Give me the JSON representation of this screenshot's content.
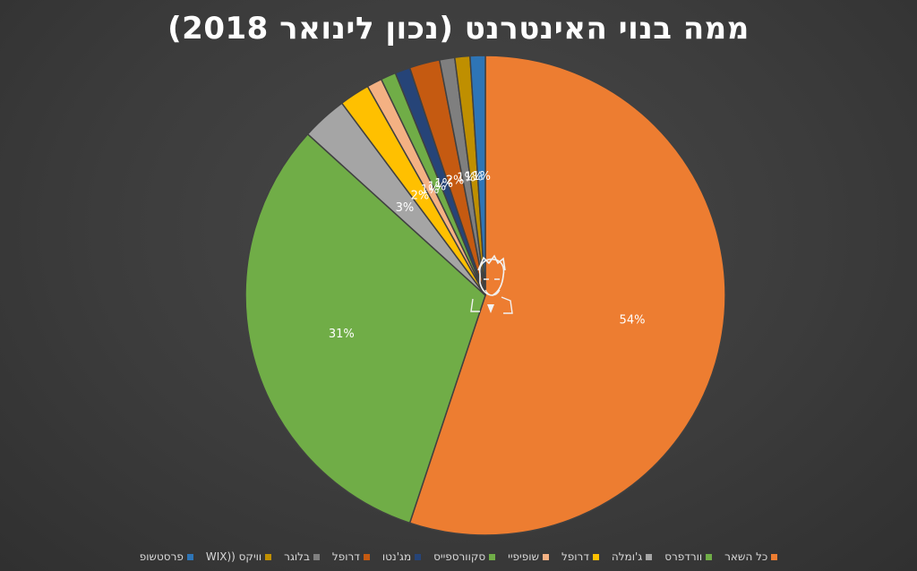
{
  "chart_data": {
    "type": "pie",
    "title": "ממה בנוי האינטרנט (נכון לינואר 2018)",
    "slices": [
      {
        "name": "כל השאר",
        "value": 54,
        "label": "54%",
        "color": "#ED7D31"
      },
      {
        "name": "וורדפרס",
        "value": 31,
        "label": "31%",
        "color": "#70AD47"
      },
      {
        "name": "ג'ומלה",
        "value": 3,
        "label": "3%",
        "color": "#A5A5A5"
      },
      {
        "name": "דרופל",
        "value": 2,
        "label": "2%",
        "color": "#FFC000"
      },
      {
        "name": "שופיפיי",
        "value": 1,
        "label": "1%",
        "color": "#F4B183"
      },
      {
        "name": "סקוורספייס",
        "value": 1,
        "label": "1%",
        "color": "#70AD47"
      },
      {
        "name": "מג'נטו",
        "value": 1,
        "label": "1%",
        "color": "#264478"
      },
      {
        "name": "דרופל",
        "value": 2,
        "label": "2%",
        "color": "#C55A11"
      },
      {
        "name": "בלוגר",
        "value": 1,
        "label": "1%",
        "color": "#7F7F7F"
      },
      {
        "name": "וויקס (WIX)",
        "value": 1,
        "label": "1%",
        "color": "#BF8F00"
      },
      {
        "name": "פרסטשופ",
        "value": 1,
        "label": "1%",
        "color": "#2E75B6"
      }
    ],
    "legend_position": "bottom"
  },
  "legend": {
    "items": [
      {
        "label": "כל השאר",
        "color": "#ED7D31"
      },
      {
        "label": "וורדפרס",
        "color": "#70AD47"
      },
      {
        "label": "ג'ומלה",
        "color": "#A5A5A5"
      },
      {
        "label": "דרופל",
        "color": "#FFC000"
      },
      {
        "label": "שופיפיי",
        "color": "#F4B183"
      },
      {
        "label": "סקוורספייס",
        "color": "#70AD47"
      },
      {
        "label": "מג'נטו",
        "color": "#264478"
      },
      {
        "label": "דרופל",
        "color": "#C55A11"
      },
      {
        "label": "בלוגר",
        "color": "#7F7F7F"
      },
      {
        "label": "וויקס ((WIX",
        "color": "#BF8F00"
      },
      {
        "label": "פרסטשופ",
        "color": "#2E75B6"
      }
    ]
  },
  "avatar": {
    "icon": "person-avatar-icon"
  }
}
